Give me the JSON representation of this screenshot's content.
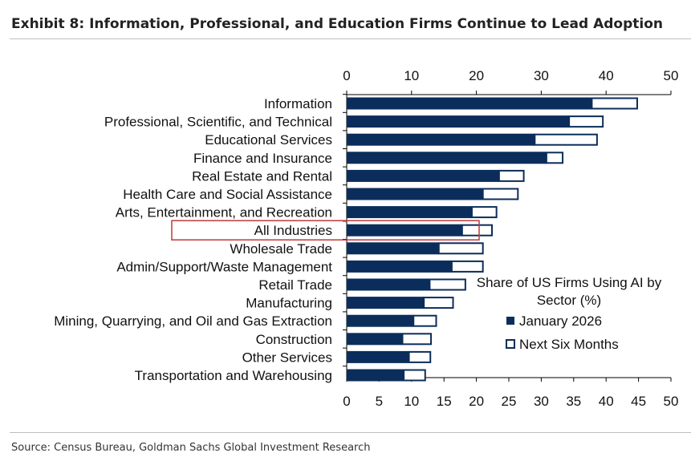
{
  "title": "Exhibit 8: Information, Professional, and Education Firms Continue to Lead Adoption",
  "source": "Source: Census Bureau, Goldman Sachs Global Investment Research",
  "colors": {
    "series_current": "#0b2d5b",
    "series_future_fill": "#ffffff",
    "highlight": "#c0393b"
  },
  "chart_data": {
    "type": "bar",
    "orientation": "horizontal",
    "stacked": true,
    "categories": [
      "Information",
      "Professional, Scientific, and Technical",
      "Educational Services",
      "Finance and Insurance",
      "Real Estate and Rental",
      "Health Care and Social Assistance",
      "Arts, Entertainment, and Recreation",
      "All Industries",
      "Wholesale Trade",
      "Admin/Support/Waste Management",
      "Retail Trade",
      "Manufacturing",
      "Mining, Quarrying, and Oil and Gas Extraction",
      "Construction",
      "Other Services",
      "Transportation and Warehousing"
    ],
    "series": [
      {
        "name": "January 2026",
        "values": [
          37.8,
          34.3,
          29.0,
          30.8,
          23.5,
          21.0,
          19.3,
          17.8,
          14.2,
          16.2,
          12.8,
          11.9,
          10.3,
          8.6,
          9.6,
          8.8
        ]
      },
      {
        "name": "Next Six Months",
        "values": [
          7.0,
          5.2,
          9.6,
          2.5,
          3.8,
          5.4,
          3.8,
          4.6,
          6.8,
          4.8,
          5.5,
          4.5,
          3.5,
          4.4,
          3.3,
          3.3
        ]
      }
    ],
    "xlim": [
      0,
      50
    ],
    "top_ticks": [
      0,
      10,
      20,
      30,
      40,
      50
    ],
    "bottom_ticks": [
      0,
      5,
      10,
      15,
      20,
      25,
      30,
      35,
      40,
      45,
      50
    ],
    "highlighted_category": "All Industries",
    "legend_title_line1": "Share of US Firms Using AI by",
    "legend_title_line2": "Sector (%)",
    "legend": [
      "January 2026",
      "Next Six Months"
    ],
    "legend_position": "right",
    "grid": false
  }
}
